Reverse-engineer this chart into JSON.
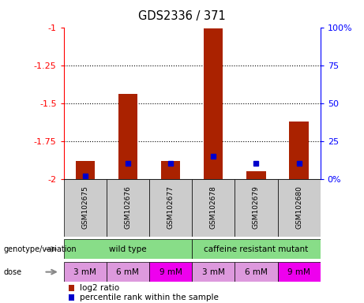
{
  "title": "GDS2336 / 371",
  "samples": [
    "GSM102675",
    "GSM102676",
    "GSM102677",
    "GSM102678",
    "GSM102679",
    "GSM102680"
  ],
  "log2_ratio": [
    -1.88,
    -1.44,
    -1.88,
    -1.01,
    -1.95,
    -1.62
  ],
  "percentile_rank": [
    2,
    10,
    10,
    15,
    10,
    10
  ],
  "ymin": -2.0,
  "ymax": -1.0,
  "ytick_vals": [
    -2.0,
    -1.75,
    -1.5,
    -1.25,
    -1.0
  ],
  "ytick_labels": [
    "-2",
    "-1.75",
    "-1.5",
    "-1.25",
    "-1"
  ],
  "right_yticks": [
    0,
    25,
    50,
    75,
    100
  ],
  "right_ylabels": [
    "0%",
    "25",
    "50",
    "75",
    "100%"
  ],
  "bar_color": "#AA2200",
  "blue_color": "#0000CC",
  "dose_labels": [
    "3 mM",
    "6 mM",
    "9 mM",
    "3 mM",
    "6 mM",
    "9 mM"
  ],
  "sample_bg_color": "#CCCCCC",
  "wt_color": "#88DD88",
  "mutant_color": "#88DD88",
  "legend_red_label": "log2 ratio",
  "legend_blue_label": "percentile rank within the sample"
}
